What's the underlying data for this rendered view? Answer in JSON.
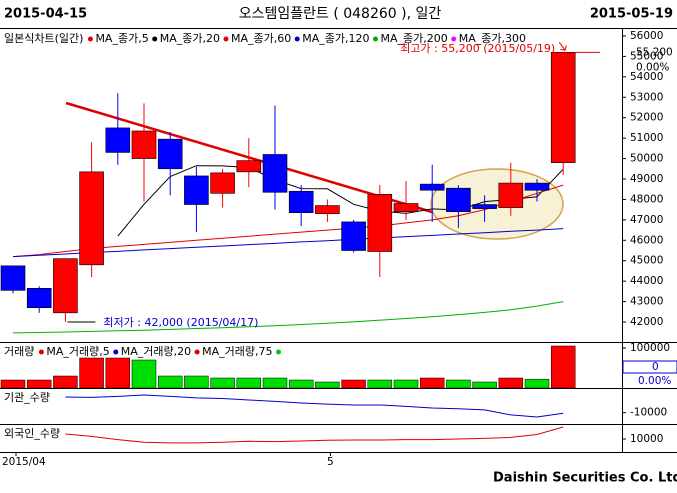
{
  "header": {
    "start": "2015-04-15",
    "title": "오스템임플란트 ( 048260 ), 일간",
    "end": "2015-05-19"
  },
  "footer": "Daishin Securities Co. Ltd.",
  "chart_data": [
    {
      "type": "candlestick",
      "legend_title": "일본식차트(일간)",
      "open": [
        44750,
        43650,
        42450,
        44800,
        51500,
        50000,
        50950,
        49150,
        48300,
        49350,
        50200,
        48400,
        47300,
        46900,
        45450,
        47400,
        48750,
        48550,
        47750,
        47600,
        48800,
        49800
      ],
      "high": [
        44750,
        43750,
        45100,
        50800,
        53200,
        52700,
        51300,
        49600,
        49500,
        51000,
        52600,
        48700,
        48000,
        47000,
        48700,
        48900,
        49700,
        48700,
        48200,
        49800,
        49000,
        55200
      ],
      "low": [
        43400,
        42450,
        42000,
        44200,
        49700,
        47900,
        48200,
        46400,
        47600,
        48600,
        47500,
        46700,
        46900,
        45400,
        44200,
        47000,
        46900,
        46600,
        46900,
        47200,
        47900,
        49200
      ],
      "close": [
        43550,
        42700,
        45100,
        49350,
        50300,
        51350,
        49500,
        47750,
        49300,
        49900,
        48350,
        47350,
        47700,
        45500,
        48250,
        47800,
        48450,
        47400,
        47550,
        48800,
        48450,
        55200
      ],
      "up_color": "#ff0000",
      "down_color": "#0000ff",
      "ylim": [
        41120,
        56390
      ],
      "yticks": [
        42000,
        43000,
        44000,
        45000,
        46000,
        47000,
        48000,
        49000,
        50000,
        51000,
        52000,
        53000,
        54000,
        55000,
        56000
      ],
      "series": [
        {
          "name": "MA_종가,5",
          "color": "#e00000"
        },
        {
          "name": "MA_종가,20",
          "color": "#000000",
          "values": [
            null,
            null,
            null,
            null,
            46200,
            47760,
            49120,
            49650,
            49640,
            49560,
            48960,
            48530,
            48520,
            47760,
            47430,
            47320,
            47540,
            47480,
            47890,
            48000,
            48130,
            49480
          ]
        },
        {
          "name": "MA_종가,60",
          "color": "#e00000",
          "values": [
            45200,
            45300,
            45450,
            45600,
            45700,
            45800,
            45900,
            46000,
            46100,
            46200,
            46300,
            46400,
            46500,
            46600,
            46700,
            46850,
            47000,
            47200,
            47500,
            47900,
            48300,
            48700
          ]
        },
        {
          "name": "MA_종가,120",
          "color": "#0000cc",
          "values": [
            45200,
            45270,
            45330,
            45400,
            45460,
            45530,
            45590,
            45660,
            45720,
            45790,
            45850,
            45920,
            45980,
            46050,
            46110,
            46180,
            46240,
            46310,
            46370,
            46440,
            46500,
            46570
          ]
        },
        {
          "name": "MA_종가,200",
          "color": "#00b000",
          "values": [
            41470,
            41490,
            41510,
            41540,
            41570,
            41600,
            41640,
            41680,
            41720,
            41770,
            41820,
            41880,
            41940,
            42010,
            42090,
            42170,
            42260,
            42360,
            42470,
            42600,
            42780,
            43000
          ]
        },
        {
          "name": "MA_종가,300",
          "color": "#ff00ff"
        }
      ],
      "high_note": "최고가 : 55,200 (2015/05/19)",
      "low_note": "최저가 : 42,000 (2015/04/17)",
      "last_price": {
        "value": 55200,
        "label": "55,200"
      },
      "change": "0.00%"
    },
    {
      "type": "bar",
      "legend_title": "거래량",
      "values": [
        20000,
        20000,
        30000,
        75000,
        75000,
        70000,
        30000,
        30000,
        25000,
        25000,
        25000,
        20000,
        15000,
        20000,
        20000,
        20000,
        25000,
        20000,
        15000,
        25000,
        22000,
        105000
      ],
      "colors": [
        "#ff0000",
        "#ff0000",
        "#ff0000",
        "#ff0000",
        "#ff0000",
        "#00dd00",
        "#00dd00",
        "#00dd00",
        "#00dd00",
        "#00dd00",
        "#00dd00",
        "#00dd00",
        "#00dd00",
        "#ff0000",
        "#00dd00",
        "#00dd00",
        "#ff0000",
        "#00dd00",
        "#00dd00",
        "#ff0000",
        "#00dd00",
        "#ff0000"
      ],
      "ylim": [
        0,
        110000
      ],
      "yticks": [
        100000
      ],
      "legend": [
        {
          "name": "MA_거래량,5",
          "color": "#e00000"
        },
        {
          "name": "MA_거래량,20",
          "color": "#0000cc"
        },
        {
          "name": "MA_거래량,75",
          "color": "#e00000"
        },
        {
          "name": "",
          "color": "#00cc00"
        }
      ],
      "current": 0,
      "change": "0.00%"
    },
    {
      "type": "line",
      "legend_title": "기관_수량",
      "color": "#0000cc",
      "values": [
        null,
        null,
        3800,
        3500,
        4400,
        5600,
        4400,
        3000,
        2500,
        1200,
        0,
        -1500,
        -2500,
        -3200,
        -3200,
        -4500,
        -5900,
        -6500,
        -7500,
        -12000,
        -13800,
        -10500
      ],
      "ylim": [
        -20000,
        10000
      ],
      "yticks": [
        -10000
      ]
    },
    {
      "type": "line",
      "legend_title": "외국인_수량",
      "color": "#e00000",
      "values": [
        null,
        null,
        17700,
        14000,
        9000,
        5000,
        4000,
        4000,
        5000,
        6500,
        6000,
        7000,
        8000,
        8500,
        8500,
        9000,
        9000,
        10000,
        11000,
        12500,
        17000,
        28500
      ],
      "ylim": [
        -10000,
        30000
      ],
      "yticks": [
        10000
      ],
      "categories": [
        "2015/04",
        null,
        null,
        null,
        null,
        null,
        null,
        null,
        null,
        null,
        null,
        null,
        "5",
        null,
        null,
        null,
        null,
        null,
        null,
        null,
        null,
        null
      ]
    }
  ]
}
